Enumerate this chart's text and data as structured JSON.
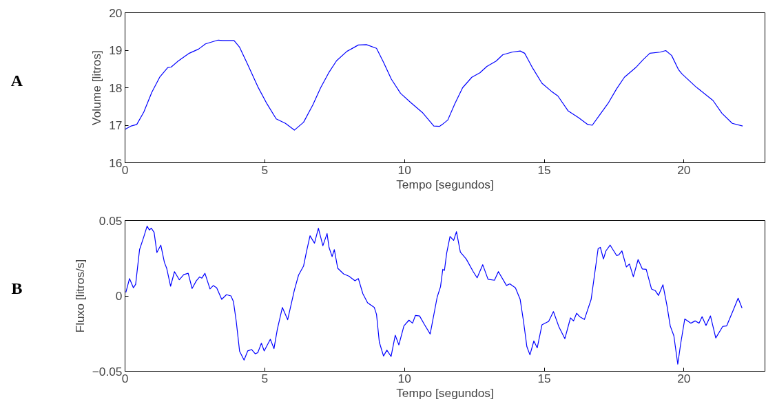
{
  "chart_data": [
    {
      "type": "line",
      "xlabel": "Tempo [segundos]",
      "ylabel": "Volume [litros]",
      "annotations": [
        "A"
      ],
      "xlim": [
        0,
        22.9
      ],
      "ylim": [
        16,
        20
      ],
      "xticks": [
        0,
        5,
        10,
        15,
        20
      ],
      "yticks": [
        16,
        17,
        18,
        19,
        20
      ],
      "grid": false,
      "marker": "none",
      "line_style": "solid",
      "series": [
        {
          "color": "#0000ff",
          "x": [
            0,
            0.22,
            0.42,
            0.67,
            0.96,
            1.24,
            1.53,
            1.65,
            1.9,
            2.3,
            2.63,
            2.88,
            3.33,
            3.49,
            3.9,
            4.1,
            4.39,
            4.75,
            5.08,
            5.41,
            5.74,
            6.06,
            6.39,
            6.72,
            7.0,
            7.29,
            7.57,
            7.94,
            8.35,
            8.64,
            9.0,
            9.25,
            9.53,
            9.86,
            10.23,
            10.64,
            11.05,
            11.25,
            11.37,
            11.55,
            11.8,
            12.08,
            12.41,
            12.7,
            12.95,
            13.28,
            13.52,
            13.85,
            14.14,
            14.3,
            14.59,
            14.92,
            15.25,
            15.49,
            15.86,
            16.23,
            16.56,
            16.72,
            16.97,
            17.3,
            17.59,
            17.87,
            18.28,
            18.53,
            18.78,
            19.15,
            19.35,
            19.56,
            19.8,
            19.93,
            20.42,
            21.04,
            21.36,
            21.73,
            22.1
          ],
          "values": [
            16.89,
            16.98,
            17.02,
            17.35,
            17.88,
            18.28,
            18.54,
            18.55,
            18.71,
            18.92,
            19.03,
            19.17,
            19.27,
            19.26,
            19.26,
            19.08,
            18.62,
            18.03,
            17.57,
            17.17,
            17.05,
            16.87,
            17.08,
            17.54,
            18.0,
            18.4,
            18.72,
            18.97,
            19.14,
            19.15,
            19.05,
            18.68,
            18.23,
            17.85,
            17.6,
            17.34,
            16.98,
            16.97,
            17.03,
            17.14,
            17.57,
            18.0,
            18.28,
            18.4,
            18.57,
            18.71,
            18.88,
            18.95,
            18.98,
            18.92,
            18.52,
            18.12,
            17.91,
            17.78,
            17.38,
            17.2,
            17.02,
            17.0,
            17.26,
            17.6,
            17.97,
            18.28,
            18.54,
            18.74,
            18.92,
            18.95,
            18.99,
            18.86,
            18.49,
            18.37,
            18.03,
            17.66,
            17.32,
            17.05,
            16.98
          ]
        }
      ]
    },
    {
      "type": "line",
      "xlabel": "Tempo [segundos]",
      "ylabel": "Fluxo [litros/s]",
      "annotations": [
        "B"
      ],
      "xlim": [
        0,
        22.9
      ],
      "ylim": [
        -0.05,
        0.05
      ],
      "xticks": [
        0,
        5,
        10,
        15,
        20
      ],
      "yticks": [
        -0.05,
        0,
        0.05
      ],
      "grid": false,
      "marker": "none",
      "line_style": "solid",
      "series": [
        {
          "color": "#0000ff",
          "x": [
            0.03,
            0.16,
            0.3,
            0.38,
            0.52,
            0.67,
            0.79,
            0.87,
            0.94,
            1.04,
            1.14,
            1.28,
            1.41,
            1.49,
            1.63,
            1.77,
            1.94,
            2.1,
            2.26,
            2.4,
            2.55,
            2.67,
            2.75,
            2.86,
            3.04,
            3.16,
            3.28,
            3.46,
            3.63,
            3.79,
            3.88,
            3.98,
            4.1,
            4.26,
            4.39,
            4.53,
            4.66,
            4.75,
            4.88,
            4.98,
            5.2,
            5.33,
            5.45,
            5.63,
            5.82,
            6.06,
            6.21,
            6.39,
            6.49,
            6.62,
            6.78,
            6.92,
            7.08,
            7.23,
            7.3,
            7.41,
            7.49,
            7.61,
            7.82,
            8.02,
            8.23,
            8.35,
            8.51,
            8.68,
            8.92,
            9.0,
            9.1,
            9.25,
            9.37,
            9.52,
            9.67,
            9.8,
            9.98,
            10.16,
            10.29,
            10.39,
            10.54,
            10.72,
            10.92,
            11.17,
            11.29,
            11.37,
            11.43,
            11.51,
            11.63,
            11.76,
            11.86,
            12.0,
            12.21,
            12.46,
            12.6,
            12.8,
            12.99,
            13.22,
            13.36,
            13.65,
            13.77,
            13.97,
            14.14,
            14.26,
            14.38,
            14.49,
            14.63,
            14.75,
            14.92,
            15.16,
            15.33,
            15.53,
            15.74,
            15.94,
            16.05,
            16.16,
            16.27,
            16.44,
            16.68,
            16.93,
            17.01,
            17.12,
            17.21,
            17.36,
            17.59,
            17.67,
            17.78,
            17.94,
            18.05,
            18.19,
            18.36,
            18.51,
            18.65,
            18.84,
            18.98,
            19.09,
            19.25,
            19.39,
            19.51,
            19.64,
            19.78,
            19.88,
            20.03,
            20.25,
            20.4,
            20.54,
            20.65,
            20.79,
            20.95,
            21.14,
            21.39,
            21.53,
            21.77,
            21.94,
            22.08
          ],
          "values": [
            0.0023,
            0.0115,
            0.0054,
            0.0077,
            0.0307,
            0.0391,
            0.0463,
            0.0437,
            0.0449,
            0.0422,
            0.0288,
            0.0337,
            0.0222,
            0.0184,
            0.0064,
            0.0161,
            0.0107,
            0.0141,
            0.015,
            0.0049,
            0.01,
            0.0126,
            0.0118,
            0.015,
            0.0046,
            0.0069,
            0.0054,
            -0.0023,
            0.0008,
            0.0,
            -0.0038,
            -0.0169,
            -0.0368,
            -0.0426,
            -0.0365,
            -0.0356,
            -0.0384,
            -0.0377,
            -0.0314,
            -0.0365,
            -0.0288,
            -0.035,
            -0.0222,
            -0.0077,
            -0.0158,
            0.0038,
            0.0138,
            0.0199,
            0.0291,
            0.0399,
            0.035,
            0.0449,
            0.0333,
            0.0414,
            0.0322,
            0.0261,
            0.0307,
            0.0184,
            0.0146,
            0.013,
            0.01,
            0.0115,
            0.0015,
            -0.0046,
            -0.0077,
            -0.0123,
            -0.0307,
            -0.0399,
            -0.036,
            -0.0402,
            -0.0261,
            -0.0325,
            -0.0199,
            -0.0161,
            -0.0181,
            -0.013,
            -0.0133,
            -0.0192,
            -0.0253,
            -0.0008,
            0.0061,
            0.0176,
            0.0169,
            0.0284,
            0.0394,
            0.0368,
            0.0426,
            0.0291,
            0.0245,
            0.0161,
            0.012,
            0.0207,
            0.011,
            0.0104,
            0.0161,
            0.0069,
            0.008,
            0.0054,
            -0.0023,
            -0.0169,
            -0.0337,
            -0.0391,
            -0.0299,
            -0.0345,
            -0.0192,
            -0.0169,
            -0.0104,
            -0.0207,
            -0.0284,
            -0.0146,
            -0.0166,
            -0.0115,
            -0.0138,
            -0.0156,
            -0.0023,
            0.0314,
            0.0322,
            0.0245,
            0.0299,
            0.0337,
            0.0268,
            0.0272,
            0.0299,
            0.0192,
            0.0212,
            0.0127,
            0.0241,
            0.0179,
            0.0176,
            0.0046,
            0.0034,
            0.0003,
            0.0074,
            -0.0061,
            -0.0199,
            -0.0265,
            -0.0453,
            -0.0322,
            -0.0153,
            -0.0181,
            -0.0166,
            -0.0181,
            -0.0138,
            -0.0196,
            -0.0133,
            -0.0279,
            -0.0202,
            -0.0199,
            -0.0092,
            -0.0015,
            -0.0081
          ]
        }
      ]
    }
  ]
}
